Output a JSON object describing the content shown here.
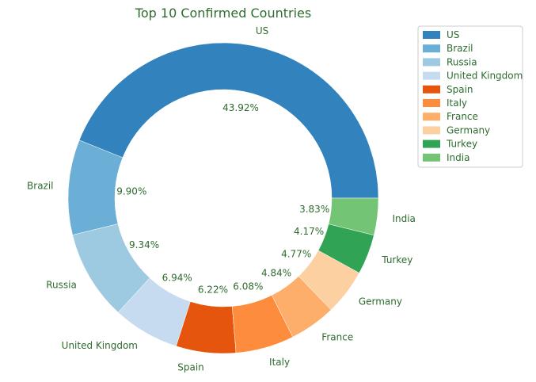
{
  "chart_data": {
    "type": "pie",
    "variant": "donut",
    "title": "Top 10 Confirmed Countries",
    "legend_position": "top-right",
    "slices": [
      {
        "label": "US",
        "percent": "43.92%",
        "value": 43.92,
        "color": "#3182bd"
      },
      {
        "label": "Brazil",
        "percent": "9.90%",
        "value": 9.9,
        "color": "#6baed6"
      },
      {
        "label": "Russia",
        "percent": "9.34%",
        "value": 9.34,
        "color": "#9ecae1"
      },
      {
        "label": "United Kingdom",
        "percent": "6.94%",
        "value": 6.94,
        "color": "#c6dbef"
      },
      {
        "label": "Spain",
        "percent": "6.22%",
        "value": 6.22,
        "color": "#e6550d"
      },
      {
        "label": "Italy",
        "percent": "6.08%",
        "value": 6.08,
        "color": "#fd8d3c"
      },
      {
        "label": "France",
        "percent": "4.84%",
        "value": 4.84,
        "color": "#fdae6b"
      },
      {
        "label": "Germany",
        "percent": "4.77%",
        "value": 4.77,
        "color": "#fdd0a2"
      },
      {
        "label": "Turkey",
        "percent": "4.17%",
        "value": 4.17,
        "color": "#31a354"
      },
      {
        "label": "India",
        "percent": "3.83%",
        "value": 3.83,
        "color": "#74c476"
      }
    ]
  }
}
